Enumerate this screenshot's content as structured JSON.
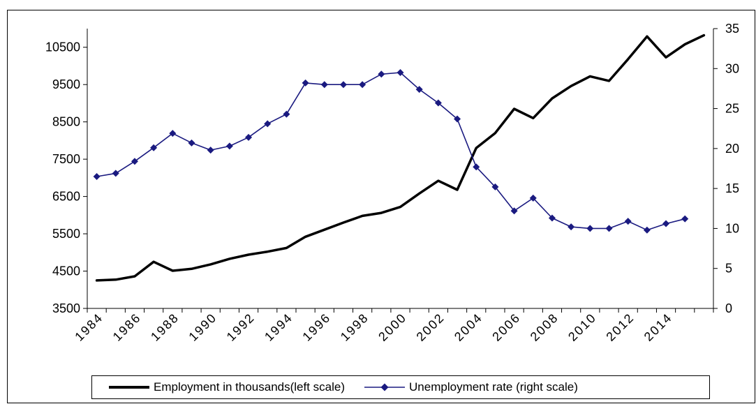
{
  "chart_data": {
    "type": "line",
    "title": "",
    "xlabel": "",
    "x_tick_labels": [
      "1984",
      "1986",
      "1988",
      "1990",
      "1992",
      "1994",
      "1996",
      "1998",
      "2000",
      "2002",
      "2004",
      "2006",
      "2008",
      "2010",
      "2012",
      "2014"
    ],
    "y_left": {
      "ylim": [
        3500,
        11000
      ],
      "ticks": [
        "3500",
        "4500",
        "5500",
        "6500",
        "7500",
        "8500",
        "9500",
        "10500"
      ]
    },
    "y_right": {
      "ylim": [
        0,
        35
      ],
      "ticks": [
        "0",
        "5",
        "10",
        "15",
        "20",
        "25",
        "30",
        "35"
      ]
    },
    "grid": false,
    "legend_placement": "bottom",
    "series": [
      {
        "name": "Employment in thousands(left scale)",
        "axis": "left",
        "color": "#000000",
        "marker": "none",
        "x": [
          1984,
          1985,
          1986,
          1987,
          1988,
          1989,
          1990,
          1991,
          1992,
          1993,
          1994,
          1995,
          1996,
          1997,
          1998,
          1999,
          2000,
          2001,
          2002,
          2003,
          2004,
          2005,
          2006,
          2007,
          2008,
          2009,
          2010,
          2011,
          2012,
          2013,
          2014,
          2015,
          2016
        ],
        "values": [
          4250,
          4270,
          4360,
          4750,
          4510,
          4560,
          4680,
          4830,
          4940,
          5020,
          5120,
          5420,
          5610,
          5800,
          5980,
          6060,
          6220,
          6580,
          6920,
          6680,
          7800,
          8200,
          8850,
          8600,
          9130,
          9460,
          9720,
          9600,
          10180,
          10790,
          10230,
          10580,
          10820
        ]
      },
      {
        "name": "Unemployment rate (right scale)",
        "axis": "right",
        "color": "#1a1a80",
        "marker": "diamond",
        "x": [
          1984,
          1985,
          1986,
          1987,
          1988,
          1989,
          1990,
          1991,
          1992,
          1993,
          1994,
          1995,
          1996,
          1997,
          1998,
          1999,
          2000,
          2001,
          2002,
          2003,
          2004,
          2005,
          2006,
          2007,
          2008,
          2009,
          2010,
          2011,
          2012,
          2013,
          2014,
          2015
        ],
        "values": [
          16.5,
          16.9,
          18.4,
          20.1,
          21.9,
          20.7,
          19.8,
          20.3,
          21.4,
          23.1,
          24.3,
          28.2,
          28.0,
          28.0,
          28.0,
          29.3,
          29.5,
          27.4,
          25.7,
          23.7,
          17.7,
          15.2,
          12.2,
          13.8,
          11.3,
          10.2,
          10.0,
          10.0,
          10.9,
          9.8,
          10.6,
          11.2
        ]
      }
    ]
  }
}
